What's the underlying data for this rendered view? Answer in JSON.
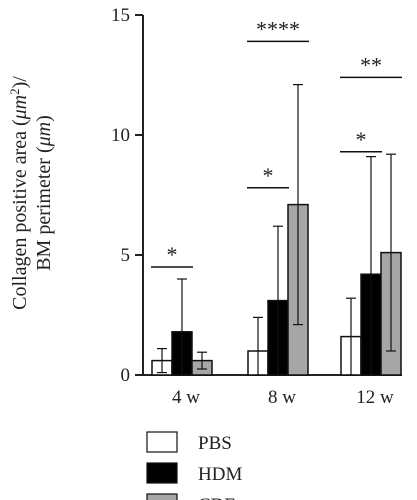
{
  "chart_data": {
    "type": "bar",
    "ylabel": "Collagen positive area (μm²)/ BM perimeter (μm)",
    "ylabel_line1": "Collagen positive area (",
    "ylabel_unit1": "μm",
    "ylabel_sup": "2",
    "ylabel_close1": ")/",
    "ylabel_line2": "BM perimeter (",
    "ylabel_unit2": "μm",
    "ylabel_close2": ")",
    "ylim": [
      0,
      15
    ],
    "yticks": [
      "0",
      "5",
      "10",
      "15"
    ],
    "categories": [
      "4 w",
      "8 w",
      "12 w"
    ],
    "series": [
      {
        "name": "PBS",
        "color": "#ffffff",
        "values": [
          0.6,
          1.0,
          1.6
        ],
        "errors": [
          0.5,
          1.4,
          1.6
        ]
      },
      {
        "name": "HDM",
        "color": "#000000",
        "values": [
          1.8,
          3.1,
          4.2
        ],
        "errors": [
          2.2,
          3.1,
          4.9
        ]
      },
      {
        "name": "CDE",
        "color": "#a6a6a6",
        "values": [
          0.6,
          7.1,
          5.1
        ],
        "errors": [
          0.35,
          5.0,
          4.1
        ]
      }
    ],
    "significance": [
      {
        "group": 0,
        "from": 0,
        "to": 1,
        "level": 4.5,
        "label": "*"
      },
      {
        "group": 1,
        "from": 0,
        "to": 1,
        "level": 7.8,
        "label": "*"
      },
      {
        "group": 1,
        "from": 0,
        "to": 2,
        "level": 13.9,
        "label": "****"
      },
      {
        "group": 2,
        "from": 0,
        "to": 1,
        "level": 9.3,
        "label": "*"
      },
      {
        "group": 2,
        "from": 0,
        "to": 2,
        "level": 12.4,
        "label": "**"
      }
    ],
    "legend_position": "bottom"
  }
}
